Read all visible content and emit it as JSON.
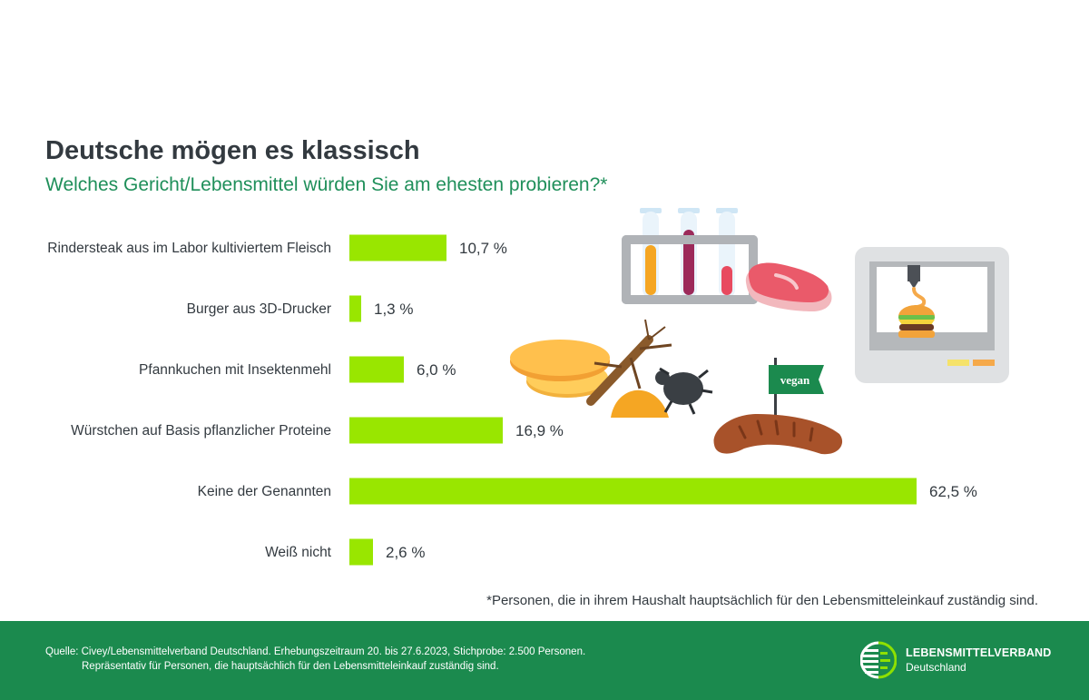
{
  "header": {
    "title": "Deutsche mögen es klassisch",
    "subtitle": "Welches Gericht/Lebensmittel würden Sie am ehesten probieren?*"
  },
  "chart_data": {
    "type": "bar",
    "orientation": "horizontal",
    "title": "Deutsche mögen es klassisch",
    "subtitle": "Welches Gericht/Lebensmittel würden Sie am ehesten probieren?*",
    "unit": "%",
    "categories": [
      "Rindersteak aus im Labor kultiviertem Fleisch",
      "Burger aus 3D-Drucker",
      "Pfannkuchen mit Insektenmehl",
      "Würstchen auf Basis pflanzlicher Proteine",
      "Keine der Genannten",
      "Weiß nicht"
    ],
    "values": [
      10.7,
      1.3,
      6.0,
      16.9,
      62.5,
      2.6
    ],
    "value_labels": [
      "10,7 %",
      "1,3 %",
      "6,0 %",
      "16,9 %",
      "62,5 %",
      "2,6 %"
    ],
    "xlim": [
      0,
      62.5
    ],
    "bar_color": "#99e600",
    "grid": false,
    "legend": false
  },
  "illustrations": {
    "vegan_flag": "vegan"
  },
  "footnote": "*Personen, die in ihrem Haushalt hauptsächlich für den Lebensmitteleinkauf zuständig sind.",
  "footer": {
    "source_line1": "Quelle: Civey/Lebensmittelverband Deutschland. Erhebungszeitraum 20. bis 27.6.2023, Stichprobe: 2.500 Personen.",
    "source_line2": "Repräsentativ für Personen, die hauptsächlich für den Lebensmitteleinkauf zuständig sind.",
    "logo_name": "LEBENSMITTELVERBAND",
    "logo_sub": "Deutschland",
    "background_color": "#1b8a4e"
  },
  "colors": {
    "title": "#333a40",
    "subtitle": "#1f8f5a",
    "bar": "#99e600"
  }
}
